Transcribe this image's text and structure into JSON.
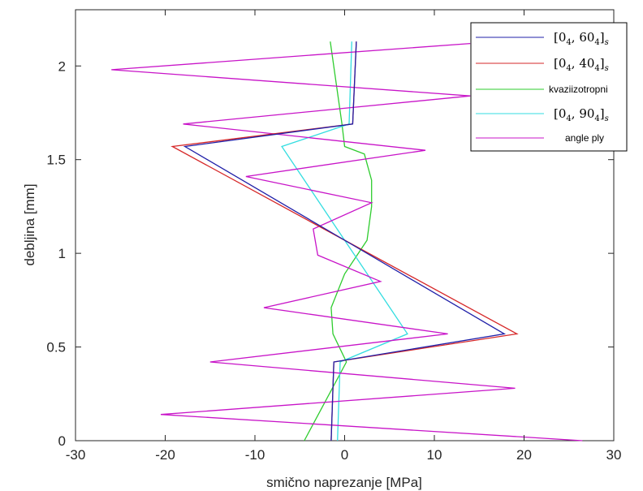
{
  "chart_data": {
    "type": "line",
    "xlabel": "smično naprezanje [MPa]",
    "ylabel": "debljina [mm]",
    "xlim": [
      -30,
      30
    ],
    "ylim": [
      0,
      2.3
    ],
    "xticks": [
      "-30",
      "-20",
      "-10",
      "0",
      "10",
      "20",
      "30"
    ],
    "yticks": [
      "0",
      "0.5",
      "1",
      "1.5",
      "2"
    ],
    "grid": false,
    "legend_position": "top-right",
    "series": [
      {
        "name": "[0_4, 60_4]_s",
        "color": "#1f1fa8",
        "points": [
          [
            -1.5,
            0
          ],
          [
            -1.2,
            0.42
          ],
          [
            17.8,
            0.57
          ],
          [
            0,
            1.07
          ],
          [
            -17.8,
            1.57
          ],
          [
            0.9,
            1.69
          ],
          [
            1.3,
            2.13
          ]
        ]
      },
      {
        "name": "[0_4, 40_4]_s",
        "color": "#d62728",
        "points": [
          [
            -1.5,
            0
          ],
          [
            -1.2,
            0.42
          ],
          [
            19.2,
            0.57
          ],
          [
            0,
            1.07
          ],
          [
            -19.2,
            1.57
          ],
          [
            0.9,
            1.69
          ],
          [
            1.3,
            2.13
          ]
        ]
      },
      {
        "name": "kvaziizotropni",
        "color": "#2ecc2e",
        "points": [
          [
            -4.5,
            0
          ],
          [
            0.2,
            0.42
          ],
          [
            -1.3,
            0.57
          ],
          [
            -1.5,
            0.71
          ],
          [
            0,
            0.89
          ],
          [
            2.5,
            1.07
          ],
          [
            3.0,
            1.25
          ],
          [
            3.0,
            1.39
          ],
          [
            2.2,
            1.53
          ],
          [
            0,
            1.57
          ],
          [
            -0.3,
            1.69
          ],
          [
            -1.6,
            2.13
          ]
        ]
      },
      {
        "name": "[0_4, 90_4]_s",
        "color": "#33dde0",
        "points": [
          [
            -0.8,
            0
          ],
          [
            -0.5,
            0.42
          ],
          [
            7.0,
            0.57
          ],
          [
            0,
            1.07
          ],
          [
            -7.0,
            1.57
          ],
          [
            0.5,
            1.69
          ],
          [
            0.8,
            2.13
          ]
        ]
      },
      {
        "name": "angle ply",
        "color": "#c814c8",
        "points": [
          [
            26.5,
            0
          ],
          [
            -20.5,
            0.14
          ],
          [
            19,
            0.28
          ],
          [
            -15,
            0.42
          ],
          [
            11.5,
            0.57
          ],
          [
            -9,
            0.71
          ],
          [
            4,
            0.85
          ],
          [
            -3,
            0.99
          ],
          [
            -3.5,
            1.13
          ],
          [
            3,
            1.27
          ],
          [
            -11,
            1.41
          ],
          [
            9,
            1.55
          ],
          [
            -18,
            1.69
          ],
          [
            14,
            1.84
          ],
          [
            -26,
            1.98
          ],
          [
            14,
            2.12
          ]
        ]
      }
    ]
  }
}
